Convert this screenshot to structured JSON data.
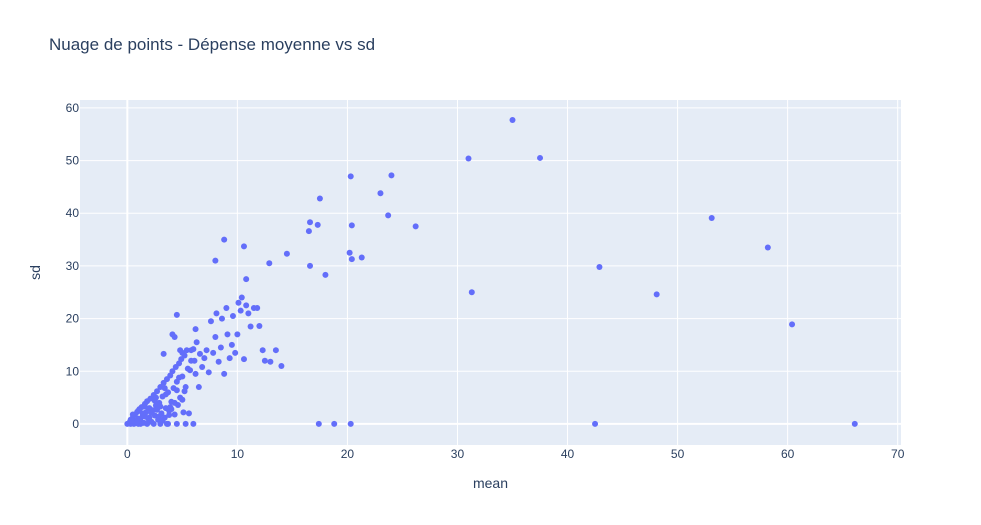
{
  "chart_data": {
    "type": "scatter",
    "title": "Nuage de points - Dépense moyenne vs sd",
    "xlabel": "mean",
    "ylabel": "sd",
    "xlim": [
      -4.3,
      70.3
    ],
    "ylim": [
      -4,
      61.5
    ],
    "x_ticks": [
      0,
      10,
      20,
      30,
      40,
      50,
      60,
      70
    ],
    "y_ticks": [
      0,
      10,
      20,
      30,
      40,
      50,
      60
    ],
    "grid": true,
    "legend": "none",
    "colors": {
      "marker": "#636efa",
      "plot_bg": "#e5ecf6",
      "grid": "#ffffff",
      "text": "#2a3f5f"
    },
    "series": [
      {
        "points": [
          [
            0,
            0
          ],
          [
            0.2,
            0.3
          ],
          [
            0.3,
            0.8
          ],
          [
            0.4,
            0.1
          ],
          [
            0.5,
            1.2
          ],
          [
            0.6,
            0.5
          ],
          [
            0.7,
            1.8
          ],
          [
            0.8,
            0.2
          ],
          [
            0.9,
            2.3
          ],
          [
            1.0,
            1.0
          ],
          [
            1.0,
            0
          ],
          [
            1.1,
            2.8
          ],
          [
            1.2,
            0.6
          ],
          [
            1.3,
            3.2
          ],
          [
            1.4,
            1.5
          ],
          [
            1.5,
            0.2
          ],
          [
            1.6,
            3.8
          ],
          [
            1.7,
            2.2
          ],
          [
            1.8,
            4.3
          ],
          [
            1.9,
            1.0
          ],
          [
            2.0,
            3.0
          ],
          [
            2.1,
            4.8
          ],
          [
            2.2,
            0.4
          ],
          [
            2.3,
            2.6
          ],
          [
            2.4,
            5.5
          ],
          [
            2.5,
            1.6
          ],
          [
            2.6,
            3.5
          ],
          [
            2.7,
            6.2
          ],
          [
            2.8,
            0.8
          ],
          [
            2.9,
            4.0
          ],
          [
            3.0,
            7.0
          ],
          [
            3.1,
            2.0
          ],
          [
            3.2,
            5.2
          ],
          [
            3.3,
            7.8
          ],
          [
            3.4,
            1.2
          ],
          [
            3.5,
            3.0
          ],
          [
            3.6,
            8.5
          ],
          [
            3.7,
            6.0
          ],
          [
            3.8,
            2.5
          ],
          [
            3.9,
            9.2
          ],
          [
            4.0,
            4.2
          ],
          [
            4.1,
            10.0
          ],
          [
            4.2,
            6.8
          ],
          [
            4.3,
            1.8
          ],
          [
            4.4,
            10.8
          ],
          [
            4.5,
            8.0
          ],
          [
            4.6,
            3.6
          ],
          [
            4.7,
            11.5
          ],
          [
            4.8,
            5.0
          ],
          [
            4.9,
            12.3
          ],
          [
            5.0,
            9.0
          ],
          [
            5.1,
            2.2
          ],
          [
            5.2,
            13.0
          ],
          [
            5.3,
            7.0
          ],
          [
            5.4,
            14.0
          ],
          [
            5.5,
            10.5
          ],
          [
            5.6,
            2.0
          ],
          [
            5.8,
            12.0
          ],
          [
            6.0,
            14.2
          ],
          [
            6.0,
            0
          ],
          [
            0.3,
            0
          ],
          [
            0.6,
            0
          ],
          [
            1.2,
            0
          ],
          [
            1.8,
            0
          ],
          [
            2.4,
            0
          ],
          [
            3.0,
            0
          ],
          [
            3.6,
            0
          ],
          [
            4.5,
            0
          ],
          [
            5.3,
            0
          ],
          [
            3.7,
            0
          ],
          [
            0.5,
            1.8
          ],
          [
            1.0,
            2.5
          ],
          [
            1.5,
            3.3
          ],
          [
            2.0,
            1.2
          ],
          [
            2.5,
            4.4
          ],
          [
            3.0,
            3.3
          ],
          [
            3.5,
            5.6
          ],
          [
            4.0,
            2.8
          ],
          [
            4.5,
            6.4
          ],
          [
            5.0,
            4.6
          ],
          [
            6.1,
            12.0
          ],
          [
            6.2,
            9.5
          ],
          [
            6.3,
            15.5
          ],
          [
            6.5,
            7.0
          ],
          [
            6.6,
            13.3
          ],
          [
            6.8,
            10.8
          ],
          [
            7.0,
            12.5
          ],
          [
            7.2,
            14.0
          ],
          [
            7.4,
            9.8
          ],
          [
            7.6,
            19.5
          ],
          [
            7.8,
            13.5
          ],
          [
            8.0,
            16.5
          ],
          [
            8.1,
            21.0
          ],
          [
            8.3,
            11.8
          ],
          [
            8.5,
            14.5
          ],
          [
            8.6,
            20.0
          ],
          [
            8.8,
            9.5
          ],
          [
            9.0,
            22.0
          ],
          [
            9.1,
            17.0
          ],
          [
            9.3,
            12.5
          ],
          [
            9.5,
            15.0
          ],
          [
            9.6,
            20.5
          ],
          [
            9.8,
            13.5
          ],
          [
            10.0,
            17.0
          ],
          [
            10.1,
            23.0
          ],
          [
            10.3,
            21.5
          ],
          [
            10.4,
            24.0
          ],
          [
            10.6,
            12.3
          ],
          [
            10.8,
            22.5
          ],
          [
            11.0,
            21.0
          ],
          [
            11.2,
            18.5
          ],
          [
            11.5,
            22.0
          ],
          [
            11.8,
            22.0
          ],
          [
            12.0,
            18.6
          ],
          [
            12.3,
            14.0
          ],
          [
            12.5,
            12.0
          ],
          [
            13.0,
            11.8
          ],
          [
            13.5,
            14.0
          ],
          [
            14.0,
            11.0
          ],
          [
            4.3,
            16.5
          ],
          [
            4.5,
            20.7
          ],
          [
            4.8,
            14.0
          ],
          [
            5.0,
            13.5
          ],
          [
            5.8,
            14.0
          ],
          [
            6.2,
            18.0
          ],
          [
            3.3,
            13.3
          ],
          [
            4.1,
            17.0
          ],
          [
            8.0,
            31.0
          ],
          [
            8.8,
            35.0
          ],
          [
            10.6,
            33.7
          ],
          [
            10.8,
            27.5
          ],
          [
            12.9,
            30.5
          ],
          [
            14.5,
            32.3
          ],
          [
            16.5,
            36.6
          ],
          [
            16.6,
            38.3
          ],
          [
            16.6,
            30.0
          ],
          [
            17.3,
            37.8
          ],
          [
            17.5,
            42.8
          ],
          [
            18.0,
            28.3
          ],
          [
            20.2,
            32.5
          ],
          [
            20.3,
            47.0
          ],
          [
            20.4,
            31.3
          ],
          [
            20.4,
            37.7
          ],
          [
            21.3,
            31.6
          ],
          [
            23.0,
            43.8
          ],
          [
            23.7,
            39.6
          ],
          [
            24.0,
            47.2
          ],
          [
            26.2,
            37.5
          ],
          [
            17.4,
            0
          ],
          [
            18.8,
            0
          ],
          [
            20.3,
            0
          ],
          [
            31.0,
            50.4
          ],
          [
            31.3,
            25.0
          ],
          [
            35.0,
            57.7
          ],
          [
            37.5,
            50.5
          ],
          [
            42.5,
            0
          ],
          [
            42.9,
            29.8
          ],
          [
            48.1,
            24.6
          ],
          [
            53.1,
            39.1
          ],
          [
            58.2,
            33.5
          ],
          [
            60.4,
            18.9
          ],
          [
            66.1,
            0
          ],
          [
            1.1,
            0.9
          ],
          [
            1.6,
            1.4
          ],
          [
            2.2,
            2.1
          ],
          [
            2.7,
            2.7
          ],
          [
            3.2,
            0.6
          ],
          [
            3.8,
            1.7
          ],
          [
            4.3,
            4.0
          ],
          [
            5.2,
            6.2
          ],
          [
            0.9,
            0.4
          ],
          [
            1.4,
            2.0
          ],
          [
            1.9,
            2.9
          ],
          [
            2.6,
            5.0
          ],
          [
            3.4,
            6.8
          ],
          [
            4.7,
            8.8
          ],
          [
            5.7,
            10.2
          ],
          [
            0.4,
            0.6
          ],
          [
            2.9,
            1.4
          ],
          [
            3.9,
            3.2
          ]
        ]
      }
    ]
  }
}
